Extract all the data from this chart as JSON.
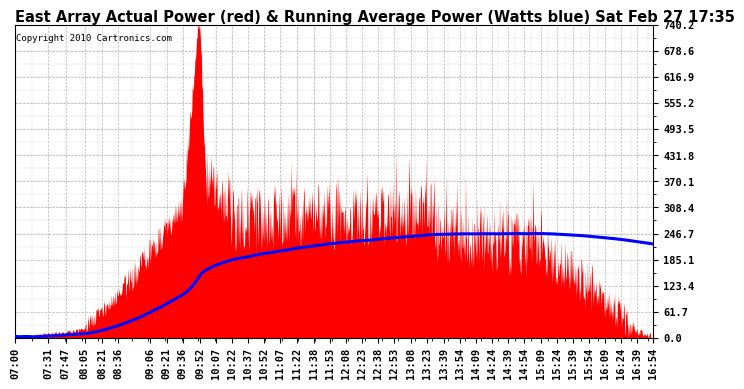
{
  "title": "East Array Actual Power (red) & Running Average Power (Watts blue) Sat Feb 27 17:35",
  "copyright": "Copyright 2010 Cartronics.com",
  "ylabel_right_ticks": [
    0.0,
    61.7,
    123.4,
    185.1,
    246.7,
    308.4,
    370.1,
    431.8,
    493.5,
    555.2,
    616.9,
    678.6,
    740.2
  ],
  "ylim": [
    0,
    740.2
  ],
  "fill_color": "red",
  "avg_color": "blue",
  "background_color": "#ffffff",
  "grid_color": "#888888",
  "title_fontsize": 10.5,
  "tick_label_fontsize": 7.5,
  "x_tick_labels": [
    "07:00",
    "07:31",
    "07:47",
    "08:05",
    "08:21",
    "08:36",
    "09:06",
    "09:21",
    "09:36",
    "09:52",
    "10:07",
    "10:22",
    "10:37",
    "10:52",
    "11:07",
    "11:22",
    "11:38",
    "11:53",
    "12:08",
    "12:23",
    "12:38",
    "12:53",
    "13:08",
    "13:23",
    "13:39",
    "13:54",
    "14:09",
    "14:24",
    "14:39",
    "14:54",
    "15:09",
    "15:24",
    "15:39",
    "15:54",
    "16:09",
    "16:24",
    "16:39",
    "16:54"
  ]
}
